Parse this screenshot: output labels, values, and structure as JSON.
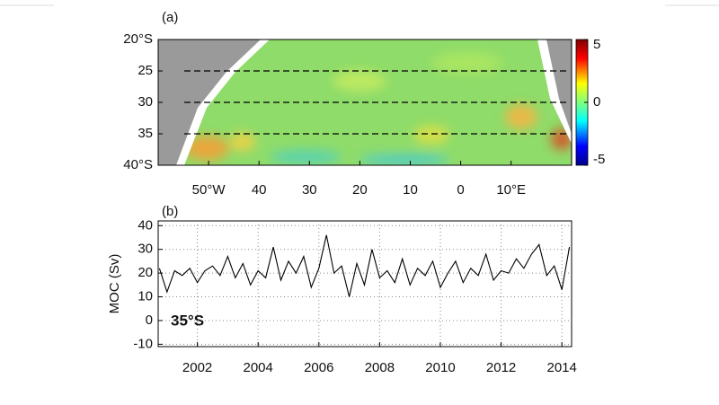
{
  "chart_data": [
    {
      "type": "map",
      "title": "(a)",
      "xlim": [
        -60,
        22
      ],
      "xticks": [
        {
          "value": -50,
          "label": "50°W"
        },
        {
          "value": -40,
          "label": "40"
        },
        {
          "value": -30,
          "label": "30"
        },
        {
          "value": -20,
          "label": "20"
        },
        {
          "value": -10,
          "label": "10"
        },
        0,
        {
          "value": 10,
          "label": "10°E"
        }
      ],
      "ylim": [
        40,
        20
      ],
      "yticks": [
        {
          "value": 20,
          "label": "20°S"
        },
        25,
        30,
        35,
        {
          "value": 40,
          "label": "40°S"
        }
      ],
      "sections": [
        25,
        30,
        35
      ],
      "clim": [
        -5,
        5
      ],
      "cticks": [
        5,
        0,
        -5
      ]
    },
    {
      "type": "line",
      "title": "(b)",
      "ylabel": "MOC (Sv)",
      "annotation": "35°S",
      "xlim": [
        2000.71,
        2014.32
      ],
      "xticks": [
        2002,
        2004,
        2006,
        2008,
        2010,
        2012,
        2014
      ],
      "ylim": [
        -11,
        42
      ],
      "yticks": [
        -10,
        0,
        10,
        20,
        30,
        40
      ],
      "grid": true,
      "color": "#000000",
      "x": [
        2000.75,
        2001,
        2001.25,
        2001.5,
        2001.75,
        2002,
        2002.25,
        2002.5,
        2002.75,
        2003,
        2003.25,
        2003.5,
        2003.75,
        2004,
        2004.25,
        2004.5,
        2004.75,
        2005,
        2005.25,
        2005.5,
        2005.75,
        2006,
        2006.25,
        2006.5,
        2006.75,
        2007,
        2007.25,
        2007.5,
        2007.75,
        2008,
        2008.25,
        2008.5,
        2008.75,
        2009,
        2009.25,
        2009.5,
        2009.75,
        2010,
        2010.25,
        2010.5,
        2010.75,
        2011,
        2011.25,
        2011.5,
        2011.75,
        2012,
        2012.25,
        2012.5,
        2012.75,
        2013,
        2013.25,
        2013.5,
        2013.75,
        2014,
        2014.25
      ],
      "values": [
        22,
        12,
        21,
        19,
        22,
        16,
        21,
        23,
        19,
        27,
        18,
        24,
        15,
        21,
        18,
        31,
        17,
        25,
        20,
        27,
        14,
        22,
        36,
        20,
        23,
        10,
        24,
        15,
        30,
        18,
        21,
        16,
        26,
        15,
        22,
        19,
        25,
        14,
        20,
        25,
        16,
        22,
        19,
        28,
        17,
        21,
        20,
        26,
        22,
        28,
        32,
        19,
        23,
        13,
        31
      ]
    }
  ]
}
